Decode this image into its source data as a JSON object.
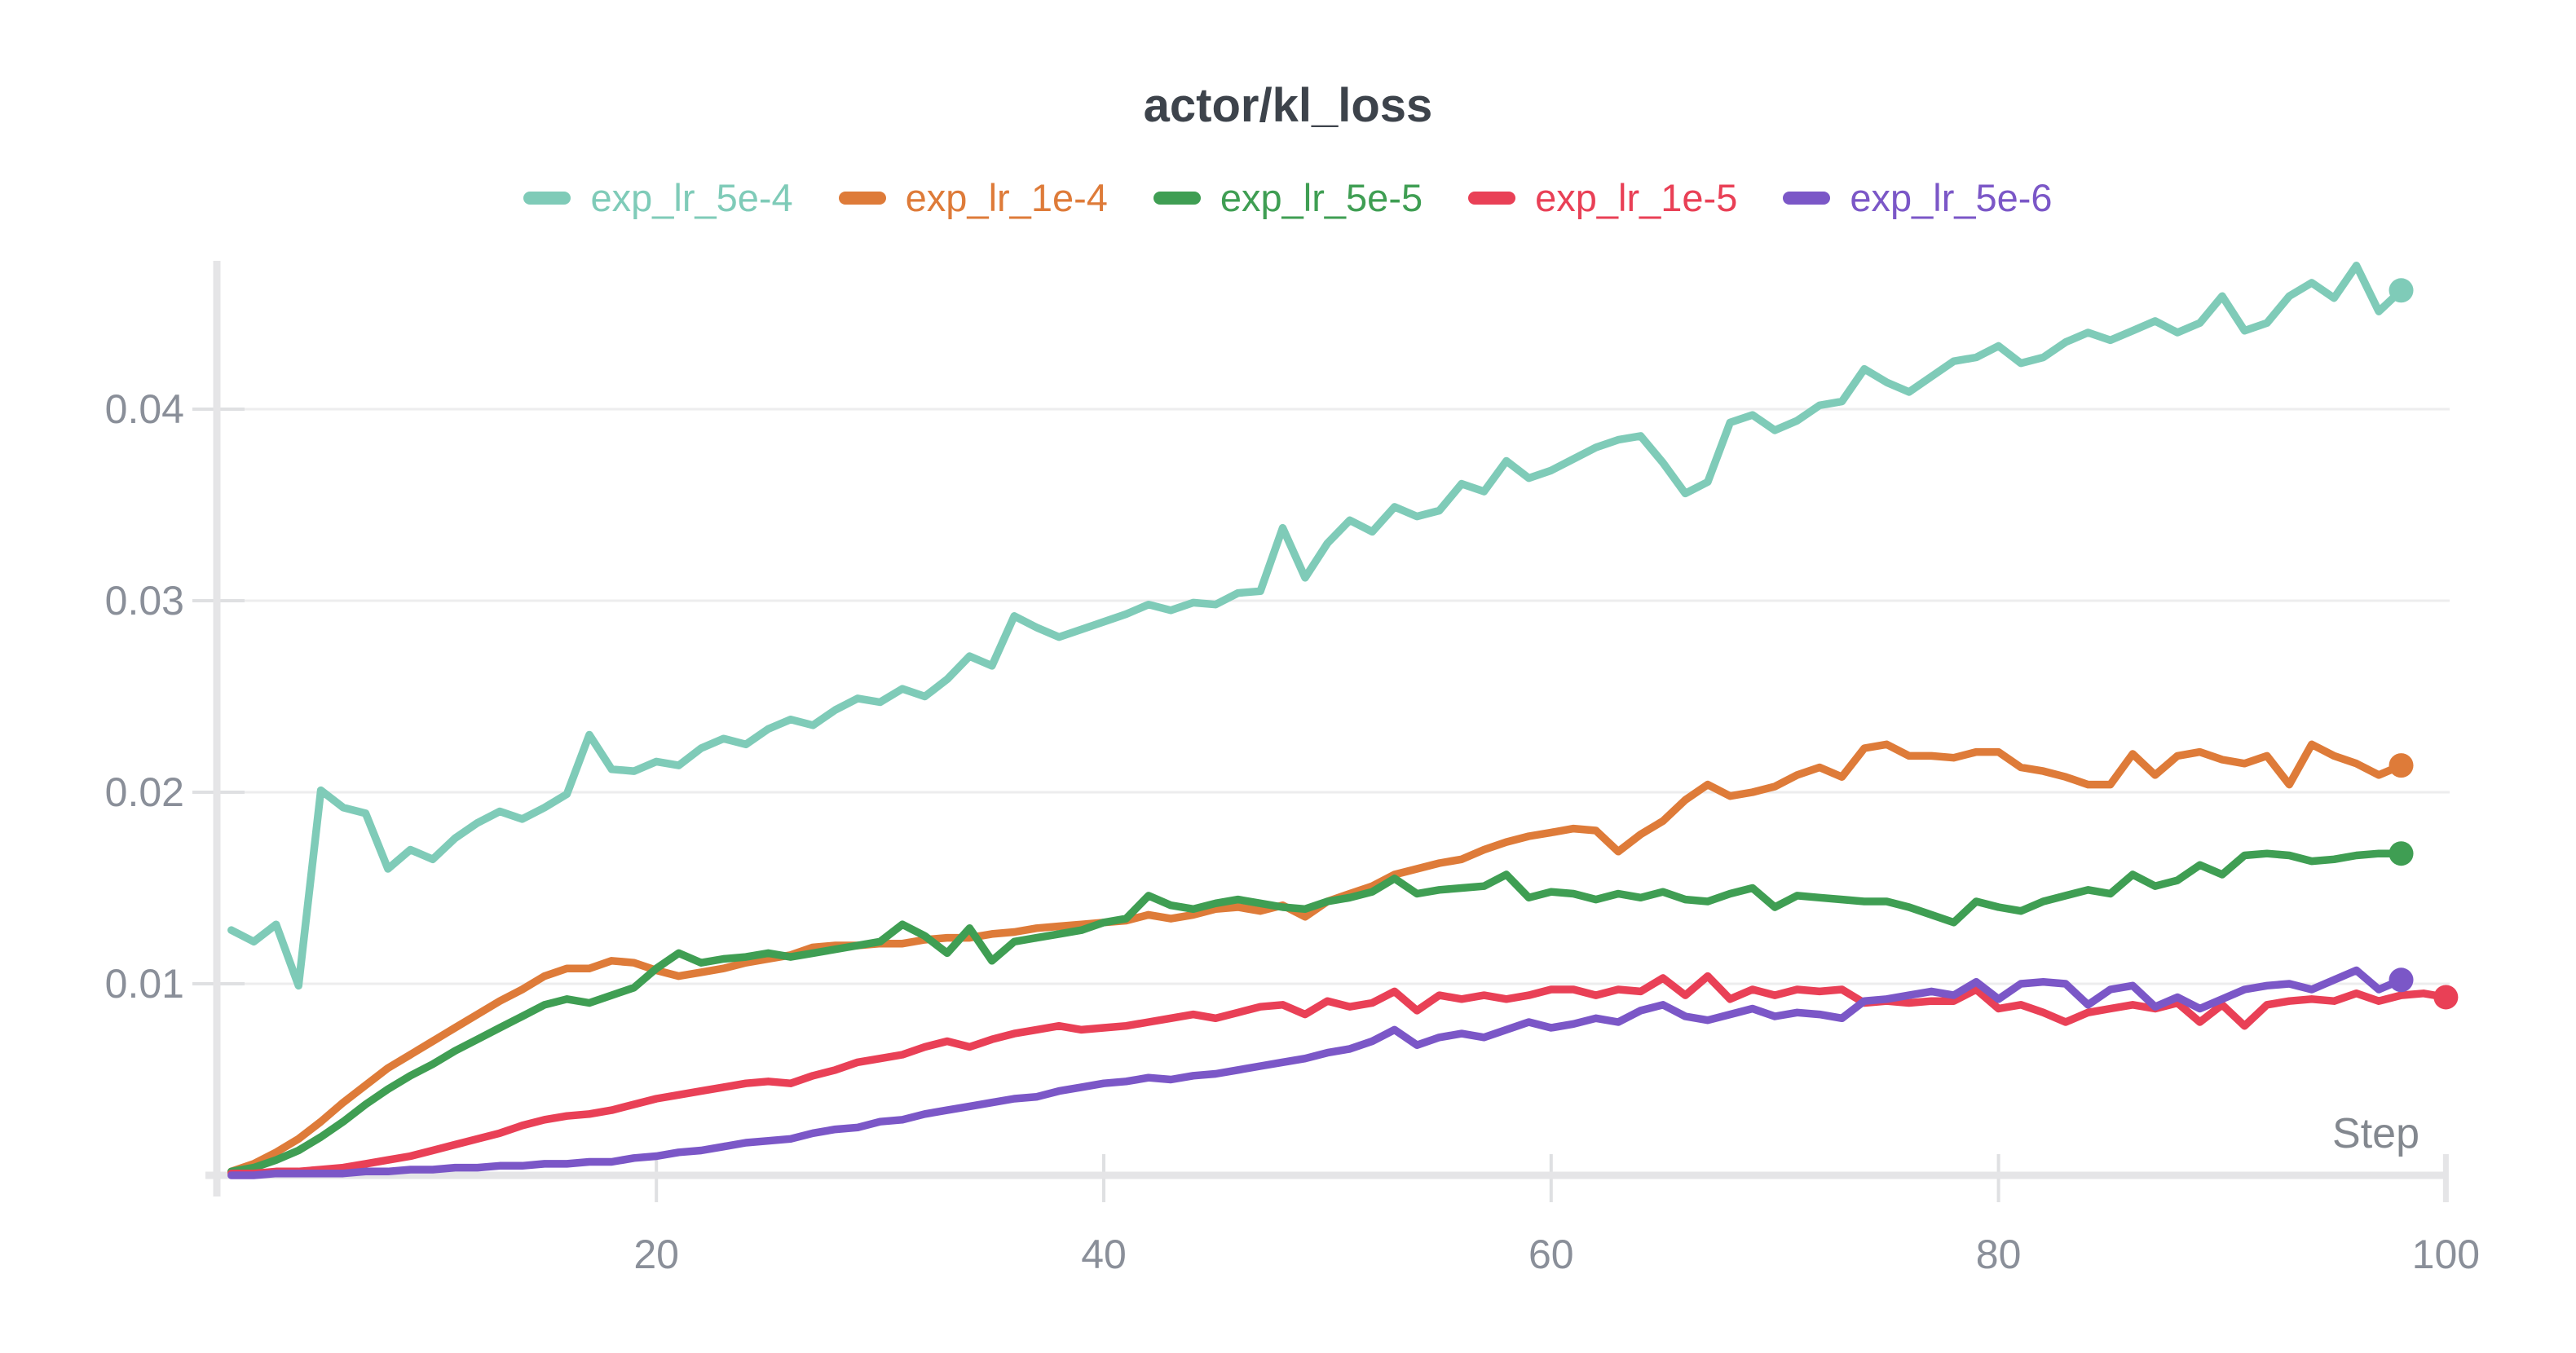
{
  "chart_data": {
    "type": "line",
    "title": "actor/kl_loss",
    "xlabel": "Step",
    "x_start": 1,
    "x_ticks": [
      20,
      40,
      60,
      80,
      100
    ],
    "y_ticks": [
      0.01,
      0.02,
      0.03,
      0.04
    ],
    "y_tick_labels": [
      "0.01",
      "0.02",
      "0.03",
      "0.04"
    ],
    "xlim": [
      0,
      102
    ],
    "ylim": [
      0,
      0.0478
    ],
    "grid": "horizontal-only",
    "legend_position": "top-center",
    "series": [
      {
        "name": "exp_lr_5e-4",
        "color": "#7fcbb8",
        "values": [
          0.0128,
          0.0122,
          0.0131,
          0.0099,
          0.0201,
          0.0192,
          0.0189,
          0.016,
          0.017,
          0.0165,
          0.0176,
          0.0184,
          0.019,
          0.0186,
          0.0192,
          0.0199,
          0.023,
          0.0212,
          0.0211,
          0.0216,
          0.0214,
          0.0223,
          0.0228,
          0.0225,
          0.0233,
          0.0238,
          0.0235,
          0.0243,
          0.0249,
          0.0247,
          0.0254,
          0.025,
          0.0259,
          0.0271,
          0.0266,
          0.0292,
          0.0286,
          0.0281,
          0.0285,
          0.0289,
          0.0293,
          0.0298,
          0.0295,
          0.0299,
          0.0298,
          0.0304,
          0.0305,
          0.0338,
          0.0312,
          0.033,
          0.0342,
          0.0336,
          0.0349,
          0.0344,
          0.0347,
          0.0361,
          0.0357,
          0.0373,
          0.0364,
          0.0368,
          0.0374,
          0.038,
          0.0384,
          0.0386,
          0.0372,
          0.0356,
          0.0362,
          0.0393,
          0.0397,
          0.0389,
          0.0394,
          0.0402,
          0.0404,
          0.0421,
          0.0414,
          0.0409,
          0.0417,
          0.0425,
          0.0427,
          0.0433,
          0.0424,
          0.0427,
          0.0435,
          0.044,
          0.0436,
          0.0441,
          0.0446,
          0.044,
          0.0445,
          0.0459,
          0.0441,
          0.0445,
          0.0459,
          0.0466,
          0.0458,
          0.0475,
          0.0451,
          0.0462
        ]
      },
      {
        "name": "exp_lr_1e-4",
        "color": "#de7b39",
        "values": [
          0.0002,
          0.0006,
          0.0012,
          0.0019,
          0.0028,
          0.0038,
          0.0047,
          0.0056,
          0.0063,
          0.007,
          0.0077,
          0.0084,
          0.0091,
          0.0097,
          0.0104,
          0.0108,
          0.0108,
          0.0112,
          0.0111,
          0.0107,
          0.0104,
          0.0106,
          0.0108,
          0.0111,
          0.0113,
          0.0115,
          0.0119,
          0.012,
          0.012,
          0.0121,
          0.0121,
          0.0123,
          0.0124,
          0.0124,
          0.0126,
          0.0127,
          0.0129,
          0.013,
          0.0131,
          0.0132,
          0.0133,
          0.0136,
          0.0134,
          0.0136,
          0.0139,
          0.014,
          0.0138,
          0.0141,
          0.0135,
          0.0143,
          0.0147,
          0.0151,
          0.0157,
          0.016,
          0.0163,
          0.0165,
          0.017,
          0.0174,
          0.0177,
          0.0179,
          0.0181,
          0.018,
          0.0169,
          0.0178,
          0.0185,
          0.0196,
          0.0204,
          0.0198,
          0.02,
          0.0203,
          0.0209,
          0.0213,
          0.0208,
          0.0223,
          0.0225,
          0.0219,
          0.0219,
          0.0218,
          0.0221,
          0.0221,
          0.0213,
          0.0211,
          0.0208,
          0.0204,
          0.0204,
          0.022,
          0.0209,
          0.0219,
          0.0221,
          0.0217,
          0.0215,
          0.0219,
          0.0204,
          0.0225,
          0.0219,
          0.0215,
          0.0209,
          0.0214
        ]
      },
      {
        "name": "exp_lr_5e-5",
        "color": "#3f9e53",
        "values": [
          0.0002,
          0.0004,
          0.0008,
          0.0013,
          0.002,
          0.0028,
          0.0037,
          0.0045,
          0.0052,
          0.0058,
          0.0065,
          0.0071,
          0.0077,
          0.0083,
          0.0089,
          0.0092,
          0.009,
          0.0094,
          0.0098,
          0.0108,
          0.0116,
          0.0111,
          0.0113,
          0.0114,
          0.0116,
          0.0114,
          0.0116,
          0.0118,
          0.012,
          0.0122,
          0.0131,
          0.0125,
          0.0116,
          0.0129,
          0.0112,
          0.0122,
          0.0124,
          0.0126,
          0.0128,
          0.0132,
          0.0134,
          0.0146,
          0.0141,
          0.0139,
          0.0142,
          0.0144,
          0.0142,
          0.014,
          0.0139,
          0.0143,
          0.0145,
          0.0148,
          0.0155,
          0.0147,
          0.0149,
          0.015,
          0.0151,
          0.0157,
          0.0145,
          0.0148,
          0.0147,
          0.0144,
          0.0147,
          0.0145,
          0.0148,
          0.0144,
          0.0143,
          0.0147,
          0.015,
          0.014,
          0.0146,
          0.0145,
          0.0144,
          0.0143,
          0.0143,
          0.014,
          0.0136,
          0.0132,
          0.0143,
          0.014,
          0.0138,
          0.0143,
          0.0146,
          0.0149,
          0.0147,
          0.0157,
          0.0151,
          0.0154,
          0.0162,
          0.0157,
          0.0167,
          0.0168,
          0.0167,
          0.0164,
          0.0165,
          0.0167,
          0.0168,
          0.0168
        ]
      },
      {
        "name": "exp_lr_1e-5",
        "color": "#e94056",
        "values": [
          0.0001,
          0.0001,
          0.0002,
          0.0002,
          0.0003,
          0.0004,
          0.0006,
          0.0008,
          0.001,
          0.0013,
          0.0016,
          0.0019,
          0.0022,
          0.0026,
          0.0029,
          0.0031,
          0.0032,
          0.0034,
          0.0037,
          0.004,
          0.0042,
          0.0044,
          0.0046,
          0.0048,
          0.0049,
          0.0048,
          0.0052,
          0.0055,
          0.0059,
          0.0061,
          0.0063,
          0.0067,
          0.007,
          0.0067,
          0.0071,
          0.0074,
          0.0076,
          0.0078,
          0.0076,
          0.0077,
          0.0078,
          0.008,
          0.0082,
          0.0084,
          0.0082,
          0.0085,
          0.0088,
          0.0089,
          0.0084,
          0.0091,
          0.0088,
          0.009,
          0.0096,
          0.0086,
          0.0094,
          0.0092,
          0.0094,
          0.0092,
          0.0094,
          0.0097,
          0.0097,
          0.0094,
          0.0097,
          0.0096,
          0.0103,
          0.0094,
          0.0104,
          0.0092,
          0.0097,
          0.0094,
          0.0097,
          0.0096,
          0.0097,
          0.009,
          0.0091,
          0.009,
          0.0091,
          0.0091,
          0.0097,
          0.0087,
          0.0089,
          0.0085,
          0.008,
          0.0085,
          0.0087,
          0.0089,
          0.0087,
          0.009,
          0.008,
          0.0089,
          0.0078,
          0.0089,
          0.0091,
          0.0092,
          0.0091,
          0.0095,
          0.0091,
          0.0094,
          0.0095,
          0.0093
        ]
      },
      {
        "name": "exp_lr_5e-6",
        "color": "#7b57c7",
        "values": [
          0.0,
          0.0,
          0.0001,
          0.0001,
          0.0001,
          0.0001,
          0.0002,
          0.0002,
          0.0003,
          0.0003,
          0.0004,
          0.0004,
          0.0005,
          0.0005,
          0.0006,
          0.0006,
          0.0007,
          0.0007,
          0.0009,
          0.001,
          0.0012,
          0.0013,
          0.0015,
          0.0017,
          0.0018,
          0.0019,
          0.0022,
          0.0024,
          0.0025,
          0.0028,
          0.0029,
          0.0032,
          0.0034,
          0.0036,
          0.0038,
          0.004,
          0.0041,
          0.0044,
          0.0046,
          0.0048,
          0.0049,
          0.0051,
          0.005,
          0.0052,
          0.0053,
          0.0055,
          0.0057,
          0.0059,
          0.0061,
          0.0064,
          0.0066,
          0.007,
          0.0076,
          0.0068,
          0.0072,
          0.0074,
          0.0072,
          0.0076,
          0.008,
          0.0077,
          0.0079,
          0.0082,
          0.008,
          0.0086,
          0.0089,
          0.0083,
          0.0081,
          0.0084,
          0.0087,
          0.0083,
          0.0085,
          0.0084,
          0.0082,
          0.0091,
          0.0092,
          0.0094,
          0.0096,
          0.0094,
          0.0101,
          0.0092,
          0.01,
          0.0101,
          0.01,
          0.0089,
          0.0097,
          0.0099,
          0.0088,
          0.0093,
          0.0087,
          0.0092,
          0.0097,
          0.0099,
          0.01,
          0.0097,
          0.0102,
          0.0107,
          0.0097,
          0.0102
        ]
      }
    ],
    "colors": {
      "axis": "#e5e5e7",
      "grid": "#ededee",
      "tick": "#dfe0e2",
      "tick_text": "#8a8f99",
      "title_text": "#3d434b",
      "xlabel_text": "#83888f"
    }
  }
}
